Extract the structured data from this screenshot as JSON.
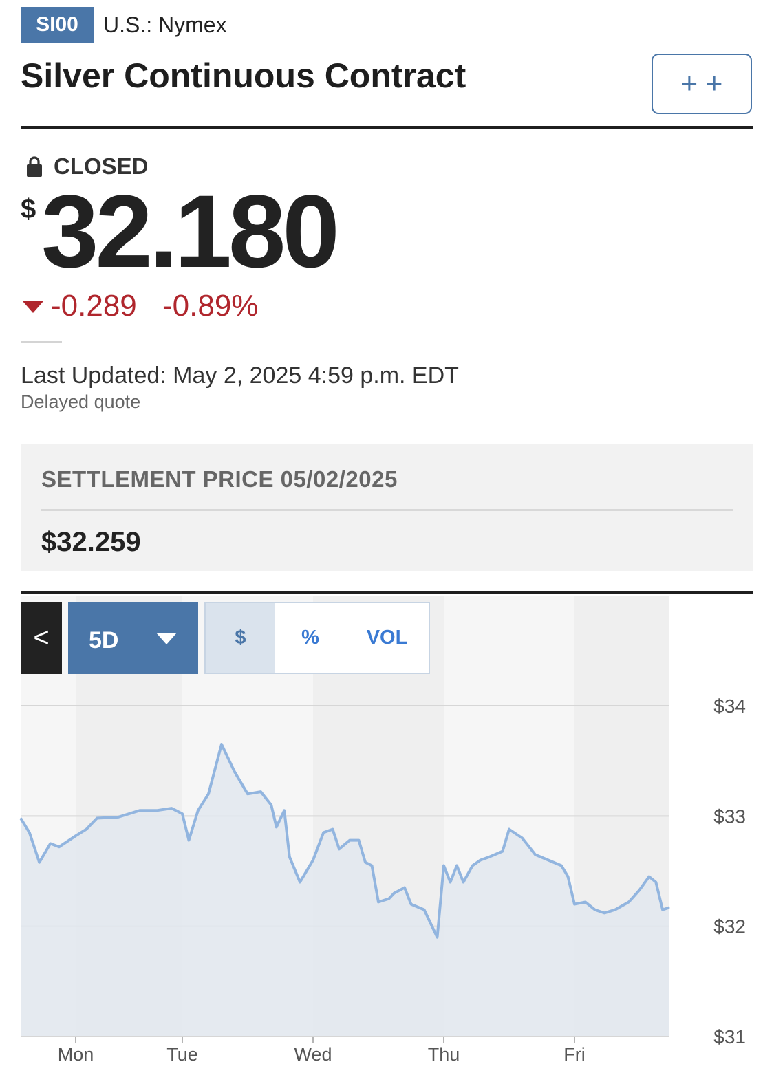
{
  "header": {
    "ticker": "SI00",
    "exchange": "U.S.: Nymex",
    "title": "Silver Continuous Contract",
    "watch_button": "+ +"
  },
  "quote": {
    "status": "CLOSED",
    "currency_symbol": "$",
    "price": "32.180",
    "change": "-0.289",
    "change_percent": "-0.89%",
    "last_updated": "Last Updated: May 2, 2025 4:59 p.m. EDT",
    "delayed_note": "Delayed quote"
  },
  "settlement": {
    "label": "SETTLEMENT PRICE 05/02/2025",
    "value": "$32.259"
  },
  "chart_controls": {
    "back_label": "<",
    "range_label": "5D",
    "tabs": [
      {
        "label": "$",
        "selected": true
      },
      {
        "label": "%",
        "selected": false
      },
      {
        "label": "VOL",
        "selected": false
      }
    ]
  },
  "colors": {
    "brand_blue": "#4a76a8",
    "negative_red": "#b0262d",
    "line_blue": "#92b5df",
    "area_fill": "#e2e8ef"
  },
  "chart_data": {
    "type": "area",
    "title": "",
    "xlabel": "",
    "ylabel": "",
    "x_tick_labels": [
      "Mon",
      "Tue",
      "Wed",
      "Thu",
      "Fri"
    ],
    "y_tick_labels": [
      "$34",
      "$33",
      "$32",
      "$31"
    ],
    "ylim": [
      31,
      34
    ],
    "grid": true,
    "x": [
      0.0,
      0.08,
      0.17,
      0.27,
      0.35,
      0.5,
      0.55,
      0.6,
      0.7,
      0.8,
      0.88,
      0.95,
      1.0,
      1.05,
      1.12,
      1.2,
      1.3,
      1.4,
      1.5,
      1.6,
      1.68,
      1.72,
      1.78,
      1.82,
      1.9,
      2.0,
      2.08,
      2.15,
      2.2,
      2.28,
      2.35,
      2.4,
      2.45,
      2.5,
      2.58,
      2.62,
      2.7,
      2.75,
      2.85,
      2.95,
      3.0,
      3.05,
      3.1,
      3.15,
      3.22,
      3.28,
      3.35,
      3.45,
      3.5,
      3.6,
      3.7,
      3.8,
      3.9,
      3.95,
      4.0,
      4.08,
      4.15,
      4.22,
      4.3,
      4.4,
      4.48,
      4.55,
      4.6,
      4.65,
      4.7
    ],
    "series": [
      {
        "values": [
          32.98,
          32.85,
          32.58,
          32.75,
          32.72,
          32.82,
          32.88,
          32.98,
          32.99,
          33.05,
          33.05,
          33.07,
          33.02,
          32.78,
          33.05,
          33.2,
          33.65,
          33.4,
          33.2,
          33.22,
          33.1,
          32.9,
          33.05,
          32.63,
          32.4,
          32.6,
          32.85,
          32.88,
          32.7,
          32.78,
          32.78,
          32.58,
          32.55,
          32.22,
          32.25,
          32.3,
          32.35,
          32.2,
          32.15,
          31.9,
          32.55,
          32.4,
          32.55,
          32.4,
          32.55,
          32.6,
          32.63,
          32.68,
          32.88,
          32.8,
          32.65,
          32.6,
          32.55,
          32.45,
          32.2,
          32.22,
          32.15,
          32.12,
          32.15,
          32.22,
          32.33,
          32.45,
          32.4,
          32.15,
          32.17
        ]
      }
    ]
  }
}
